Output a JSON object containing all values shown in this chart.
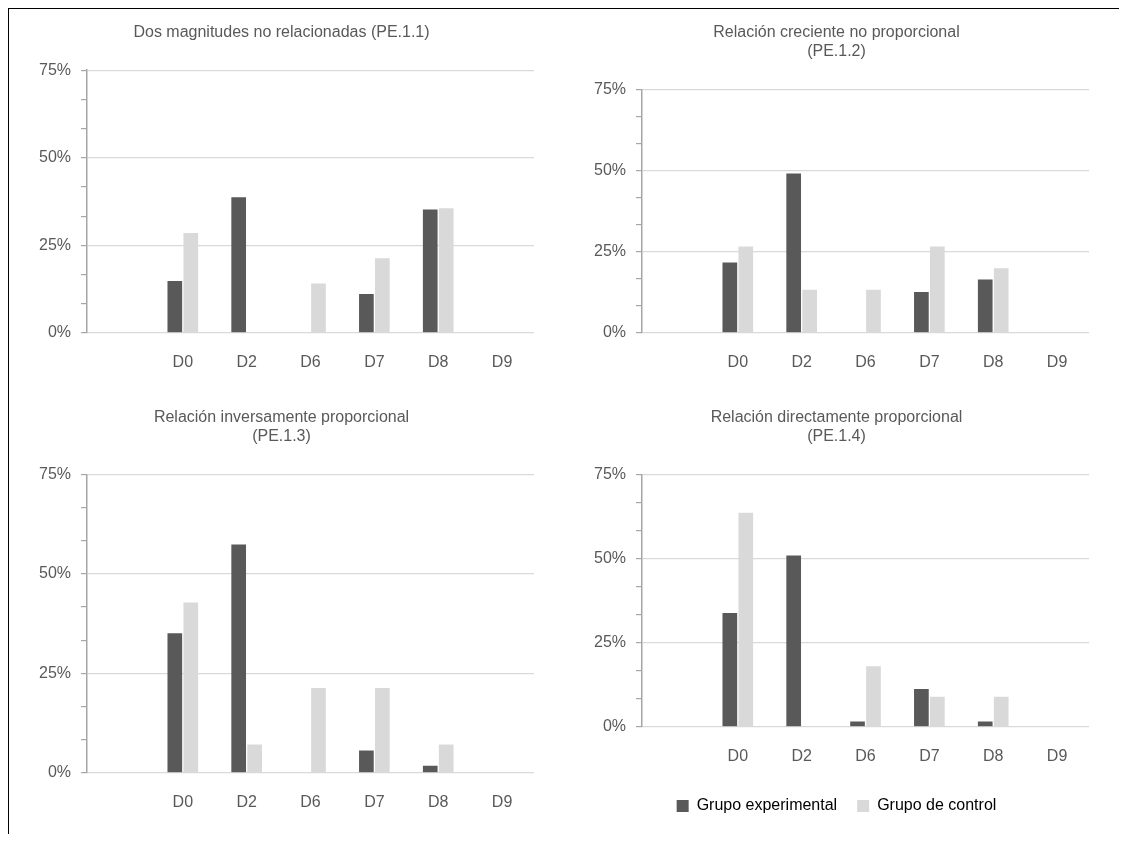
{
  "chart_data": [
    {
      "type": "bar",
      "title": "Dos magnitudes no relacionadas (PE.1.1)",
      "categories": [
        null,
        "D0",
        "D2",
        "D6",
        "D7",
        "D8",
        "D9"
      ],
      "series": [
        {
          "color": "#595959",
          "values": [
            null,
            14.8,
            38.7,
            0,
            11.1,
            35.2,
            0
          ]
        },
        {
          "color": "#d9d9d9",
          "values": [
            null,
            28.5,
            0,
            14.1,
            21.3,
            35.6,
            0
          ]
        }
      ],
      "ylim": [
        0,
        75
      ],
      "yticks": [
        {
          "value": 0,
          "label": "0%"
        },
        {
          "value": 8.33,
          "label": null
        },
        {
          "value": 16.67,
          "label": null
        },
        {
          "value": 25,
          "label": "25%"
        },
        {
          "value": 33.33,
          "label": null
        },
        {
          "value": 41.67,
          "label": null
        },
        {
          "value": 50,
          "label": "50%"
        },
        {
          "value": 58.33,
          "label": null
        },
        {
          "value": 66.67,
          "label": null
        },
        {
          "value": 75,
          "label": "75%"
        }
      ],
      "grid": "y",
      "legend": false
    },
    {
      "type": "bar",
      "title": "Relación creciente no proporcional (PE.1.2)",
      "categories": [
        null,
        "D0",
        "D2",
        "D6",
        "D7",
        "D8",
        "D9"
      ],
      "series": [
        {
          "color": "#595959",
          "values": [
            null,
            21.7,
            49.1,
            0,
            12.6,
            16.4,
            0
          ]
        },
        {
          "color": "#d9d9d9",
          "values": [
            null,
            26.6,
            13.3,
            13.3,
            26.6,
            19.9,
            0
          ]
        }
      ],
      "ylim": [
        0,
        75
      ],
      "yticks": [
        {
          "value": 0,
          "label": "0%"
        },
        {
          "value": 8.33,
          "label": null
        },
        {
          "value": 16.67,
          "label": null
        },
        {
          "value": 25,
          "label": "25%"
        },
        {
          "value": 33.33,
          "label": null
        },
        {
          "value": 41.67,
          "label": null
        },
        {
          "value": 50,
          "label": "50%"
        },
        {
          "value": 58.33,
          "label": null
        },
        {
          "value": 66.67,
          "label": null
        },
        {
          "value": 75,
          "label": "75%"
        }
      ],
      "grid": "y",
      "legend": false
    },
    {
      "type": "bar",
      "title": "Relación inversamente proporcional (PE.1.3)",
      "categories": [
        null,
        "D0",
        "D2",
        "D6",
        "D7",
        "D8",
        "D9"
      ],
      "series": [
        {
          "color": "#595959",
          "values": [
            null,
            35.1,
            57.4,
            0,
            5.6,
            1.8,
            0
          ]
        },
        {
          "color": "#d9d9d9",
          "values": [
            null,
            42.8,
            7.1,
            21.3,
            21.3,
            7.1,
            0
          ]
        }
      ],
      "ylim": [
        0,
        75
      ],
      "yticks": [
        {
          "value": 0,
          "label": "0%"
        },
        {
          "value": 8.33,
          "label": null
        },
        {
          "value": 16.67,
          "label": null
        },
        {
          "value": 25,
          "label": "25%"
        },
        {
          "value": 33.33,
          "label": null
        },
        {
          "value": 41.67,
          "label": null
        },
        {
          "value": 50,
          "label": "50%"
        },
        {
          "value": 58.33,
          "label": null
        },
        {
          "value": 66.67,
          "label": null
        },
        {
          "value": 75,
          "label": "75%"
        }
      ],
      "grid": "y",
      "legend": false
    },
    {
      "type": "bar",
      "title": "Relación directamente proporcional (PE.1.4)",
      "categories": [
        null,
        "D0",
        "D2",
        "D6",
        "D7",
        "D8",
        "D9"
      ],
      "series": [
        {
          "name": "Grupo experimental",
          "color": "#595959",
          "values": [
            null,
            33.8,
            50.9,
            1.6,
            11.2,
            1.6,
            0
          ]
        },
        {
          "name": "Grupo de control",
          "color": "#d9d9d9",
          "values": [
            null,
            63.6,
            0,
            18.0,
            8.9,
            8.9,
            0
          ]
        }
      ],
      "ylim": [
        0,
        75
      ],
      "yticks": [
        {
          "value": 0,
          "label": "0%"
        },
        {
          "value": 8.33,
          "label": null
        },
        {
          "value": 16.67,
          "label": null
        },
        {
          "value": 25,
          "label": "25%"
        },
        {
          "value": 33.33,
          "label": null
        },
        {
          "value": 41.67,
          "label": null
        },
        {
          "value": 50,
          "label": "50%"
        },
        {
          "value": 58.33,
          "label": null
        },
        {
          "value": 66.67,
          "label": null
        },
        {
          "value": 75,
          "label": "75%"
        }
      ],
      "grid": "y",
      "legend": "bottom"
    }
  ]
}
